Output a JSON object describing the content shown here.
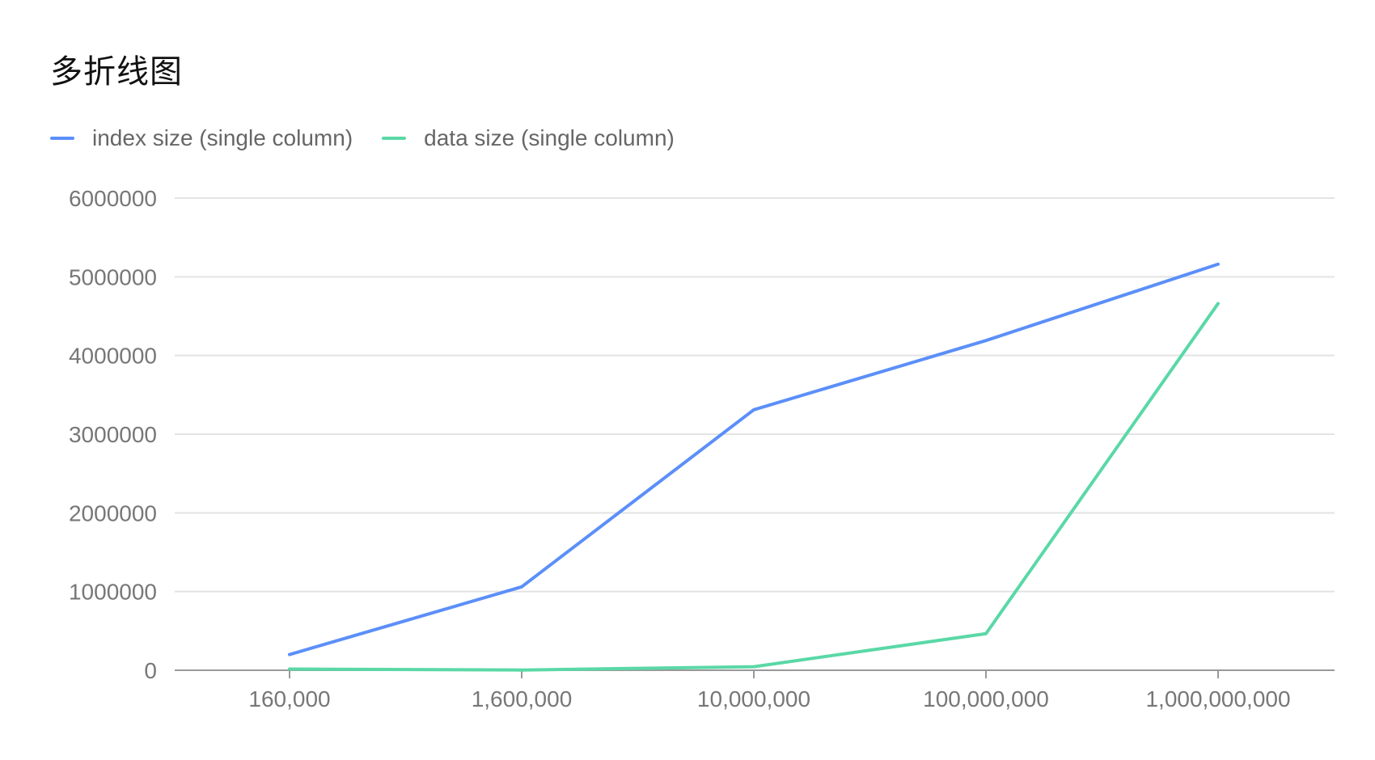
{
  "title": "多折线图",
  "legend": {
    "items": [
      {
        "label": "index size (single column)",
        "color": "#5B8FF9"
      },
      {
        "label": "data size (single column)",
        "color": "#5AD8A6"
      }
    ]
  },
  "colors": {
    "grid": "#e3e3e3",
    "axis": "#999999",
    "tick_text": "#777777"
  },
  "chart_data": {
    "type": "line",
    "title": "多折线图",
    "xlabel": "",
    "ylabel": "",
    "categories": [
      "160,000",
      "1,600,000",
      "10,000,000",
      "100,000,000",
      "1,000,000,000"
    ],
    "y_ticks": [
      0,
      1000000,
      2000000,
      3000000,
      4000000,
      5000000,
      6000000
    ],
    "ylim": [
      0,
      6000000
    ],
    "grid": true,
    "legend_position": "top-left",
    "series": [
      {
        "name": "index size (single column)",
        "color": "#5B8FF9",
        "values": [
          200000,
          1060000,
          3310000,
          4190000,
          5160000
        ]
      },
      {
        "name": "data size (single column)",
        "color": "#5AD8A6",
        "values": [
          15000,
          3000,
          45000,
          465000,
          4660000
        ]
      }
    ]
  }
}
